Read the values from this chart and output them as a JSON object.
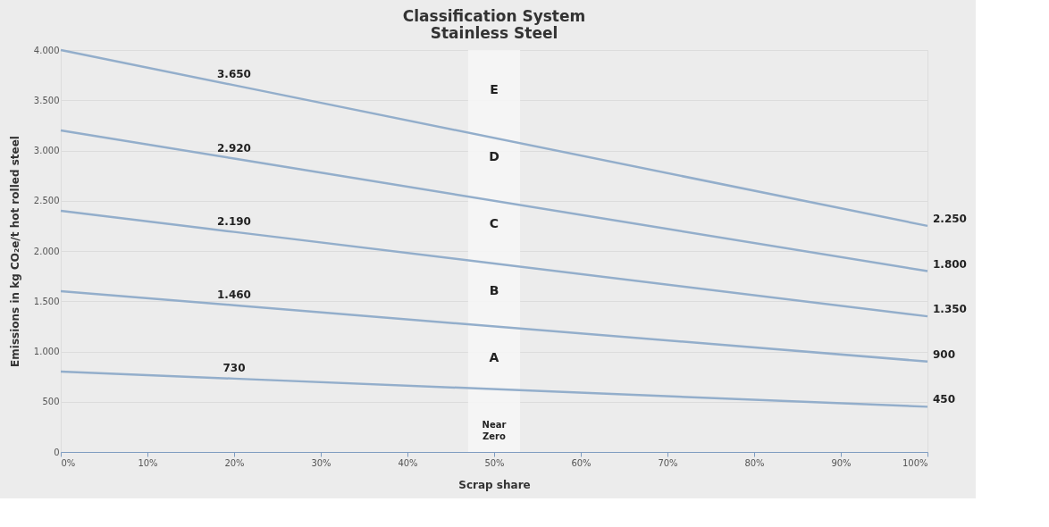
{
  "chart_data": {
    "type": "line",
    "title": "Classification System\nStainless Steel",
    "xlabel": "Scrap share",
    "ylabel": "Emissions in kg CO₂e/t hot rolled steel",
    "x": [
      0,
      20,
      100
    ],
    "series": [
      {
        "color": "#93aecb",
        "values": [
          4000,
          3650,
          2250
        ],
        "value_labels": [
          null,
          "3.650",
          "2.250"
        ]
      },
      {
        "color": "#93aecb",
        "values": [
          3200,
          2920,
          1800
        ],
        "value_labels": [
          null,
          "2.920",
          "1.800"
        ]
      },
      {
        "color": "#93aecb",
        "values": [
          2400,
          2190,
          1350
        ],
        "value_labels": [
          null,
          "2.190",
          "1.350"
        ]
      },
      {
        "color": "#93aecb",
        "values": [
          1600,
          1460,
          900
        ],
        "value_labels": [
          null,
          "1.460",
          "900"
        ]
      },
      {
        "color": "#93aecb",
        "values": [
          800,
          730,
          450
        ],
        "value_labels": [
          null,
          "730",
          "450"
        ]
      }
    ],
    "xlim": [
      0,
      100
    ],
    "xticks": [
      {
        "value": 0,
        "label": "0%"
      },
      {
        "value": 10,
        "label": "10%"
      },
      {
        "value": 20,
        "label": "20%"
      },
      {
        "value": 30,
        "label": "30%"
      },
      {
        "value": 40,
        "label": "40%"
      },
      {
        "value": 50,
        "label": "50%"
      },
      {
        "value": 60,
        "label": "60%"
      },
      {
        "value": 70,
        "label": "70%"
      },
      {
        "value": 80,
        "label": "80%"
      },
      {
        "value": 90,
        "label": "90%"
      },
      {
        "value": 100,
        "label": "100%"
      }
    ],
    "ylim": [
      0,
      4000
    ],
    "yticks": [
      0,
      500,
      {
        "value": 1000,
        "label": "1.000"
      },
      {
        "value": 1500,
        "label": "1.500"
      },
      {
        "value": 2000,
        "label": "2.000"
      },
      {
        "value": 2500,
        "label": "2.500"
      },
      {
        "value": 3000,
        "label": "3.000"
      },
      {
        "value": 3500,
        "label": "3.500"
      },
      {
        "value": 4000,
        "label": "4.000"
      }
    ],
    "bands": [
      {
        "axis": "x",
        "from": 47,
        "to": 53,
        "color": "#f7f7f7"
      }
    ],
    "annotations": [
      "E",
      "D",
      "C",
      "B",
      "A",
      "Near\nZero"
    ],
    "grid": "y",
    "marker": "none",
    "line_style": "solid"
  }
}
